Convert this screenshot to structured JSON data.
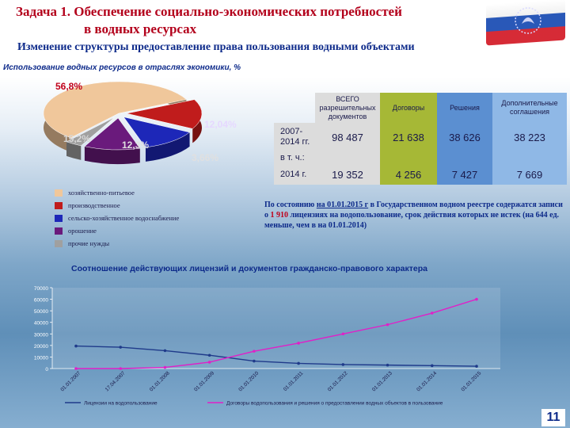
{
  "header": {
    "title_line1": "Задача 1. Обеспечение социально-экономических потребностей",
    "title_line2": "в водных ресурсах",
    "subtitle": "Изменение структуры предоставление права пользования водными объектами"
  },
  "colors": {
    "title": "#b3001b",
    "navy": "#0d2a8a"
  },
  "page_number": "11",
  "pie": {
    "title": "Использование водных ресурсов в отраслях экономики, %",
    "chart_data": {
      "type": "pie",
      "slices": [
        {
          "label": "56,8%",
          "value": 56.8,
          "category": "хозяйственно-питьевое",
          "color": "#f0c79b"
        },
        {
          "label": "15,2%",
          "value": 15.2,
          "category": "производственное",
          "color": "#c01c1c"
        },
        {
          "label": "12,3%",
          "value": 12.3,
          "category": "сельско-хозяйственное водоснабжение",
          "color": "#1d27b8"
        },
        {
          "label": "12,04%",
          "value": 12.04,
          "category": "орошение",
          "color": "#6a1a7c"
        },
        {
          "label": "3,66%",
          "value": 3.66,
          "category": "прочие нужды",
          "color": "#a0a0a0"
        }
      ]
    },
    "legend": [
      {
        "label": "хозяйственно-питьевое",
        "color": "#f0c79b"
      },
      {
        "label": "производственное",
        "color": "#c01c1c"
      },
      {
        "label": "сельско-хозяйственное водоснабжение",
        "color": "#1d27b8"
      },
      {
        "label": "орошение",
        "color": "#6a1a7c"
      },
      {
        "label": "прочие нужды",
        "color": "#a0a0a0"
      }
    ]
  },
  "table": {
    "headers": [
      "ВСЕГО разрешительных документов",
      "Договоры",
      "Решения",
      "Дополнительные соглашения"
    ],
    "row_2007_label": "2007-2014 гг.",
    "row_2007_values": [
      "98 487",
      "21 638",
      "38 626",
      "38 223"
    ],
    "row_incl_label": "в т. ч.:",
    "row_2014_label": "2014 г.",
    "row_2014_values": [
      "19 352",
      "4 256",
      "7 427",
      "7 669"
    ]
  },
  "note": {
    "part1": "По состоянию ",
    "date": "на 01.01.2015 г",
    "part2": " в Государственном водном реестре содержатся записи о ",
    "count": "1 910",
    "part3": " лицензиях на водопользование, срок действия которых не истек (на 644 ед. меньше, чем в на 01.01.2014)"
  },
  "line": {
    "title": "Соотношение действующих лицензий и документов гражданско-правового характера",
    "chart_data": {
      "type": "line",
      "x": [
        "01.01.2007",
        "17.04.2007",
        "01.01.2008",
        "01.01.2009",
        "01.01.2010",
        "01.01.2011",
        "01.01.2012",
        "01.01.2013",
        "01.01.2014",
        "01.01.2015"
      ],
      "x_tick_labels": [
        "01.01.2007",
        "17.04.2007",
        "01.01.2008",
        "01.01.2009",
        "01.01.2010",
        "01.01.2011",
        "01.01.2012",
        "01.01.2013",
        "01.01.2014",
        "01.01.2015"
      ],
      "yticks": [
        0,
        10000,
        20000,
        30000,
        40000,
        50000,
        60000,
        70000
      ],
      "ytick_labels": [
        "0",
        "10000",
        "20000",
        "30000",
        "40000",
        "50000",
        "60000",
        "70000"
      ],
      "ylim": [
        0,
        70000
      ],
      "series": [
        {
          "name": "Лицензии на водопользование",
          "color": "#1f3a8a",
          "values": [
            19500,
            18500,
            15500,
            11500,
            6500,
            4500,
            3500,
            3000,
            2500,
            2000
          ]
        },
        {
          "name": "Договоры водопользования и решения о предоставлении водных объектов в пользование",
          "color": "#e020c8",
          "values": [
            0,
            0,
            1000,
            5500,
            15000,
            22000,
            30000,
            38000,
            48000,
            60000
          ]
        }
      ]
    }
  }
}
